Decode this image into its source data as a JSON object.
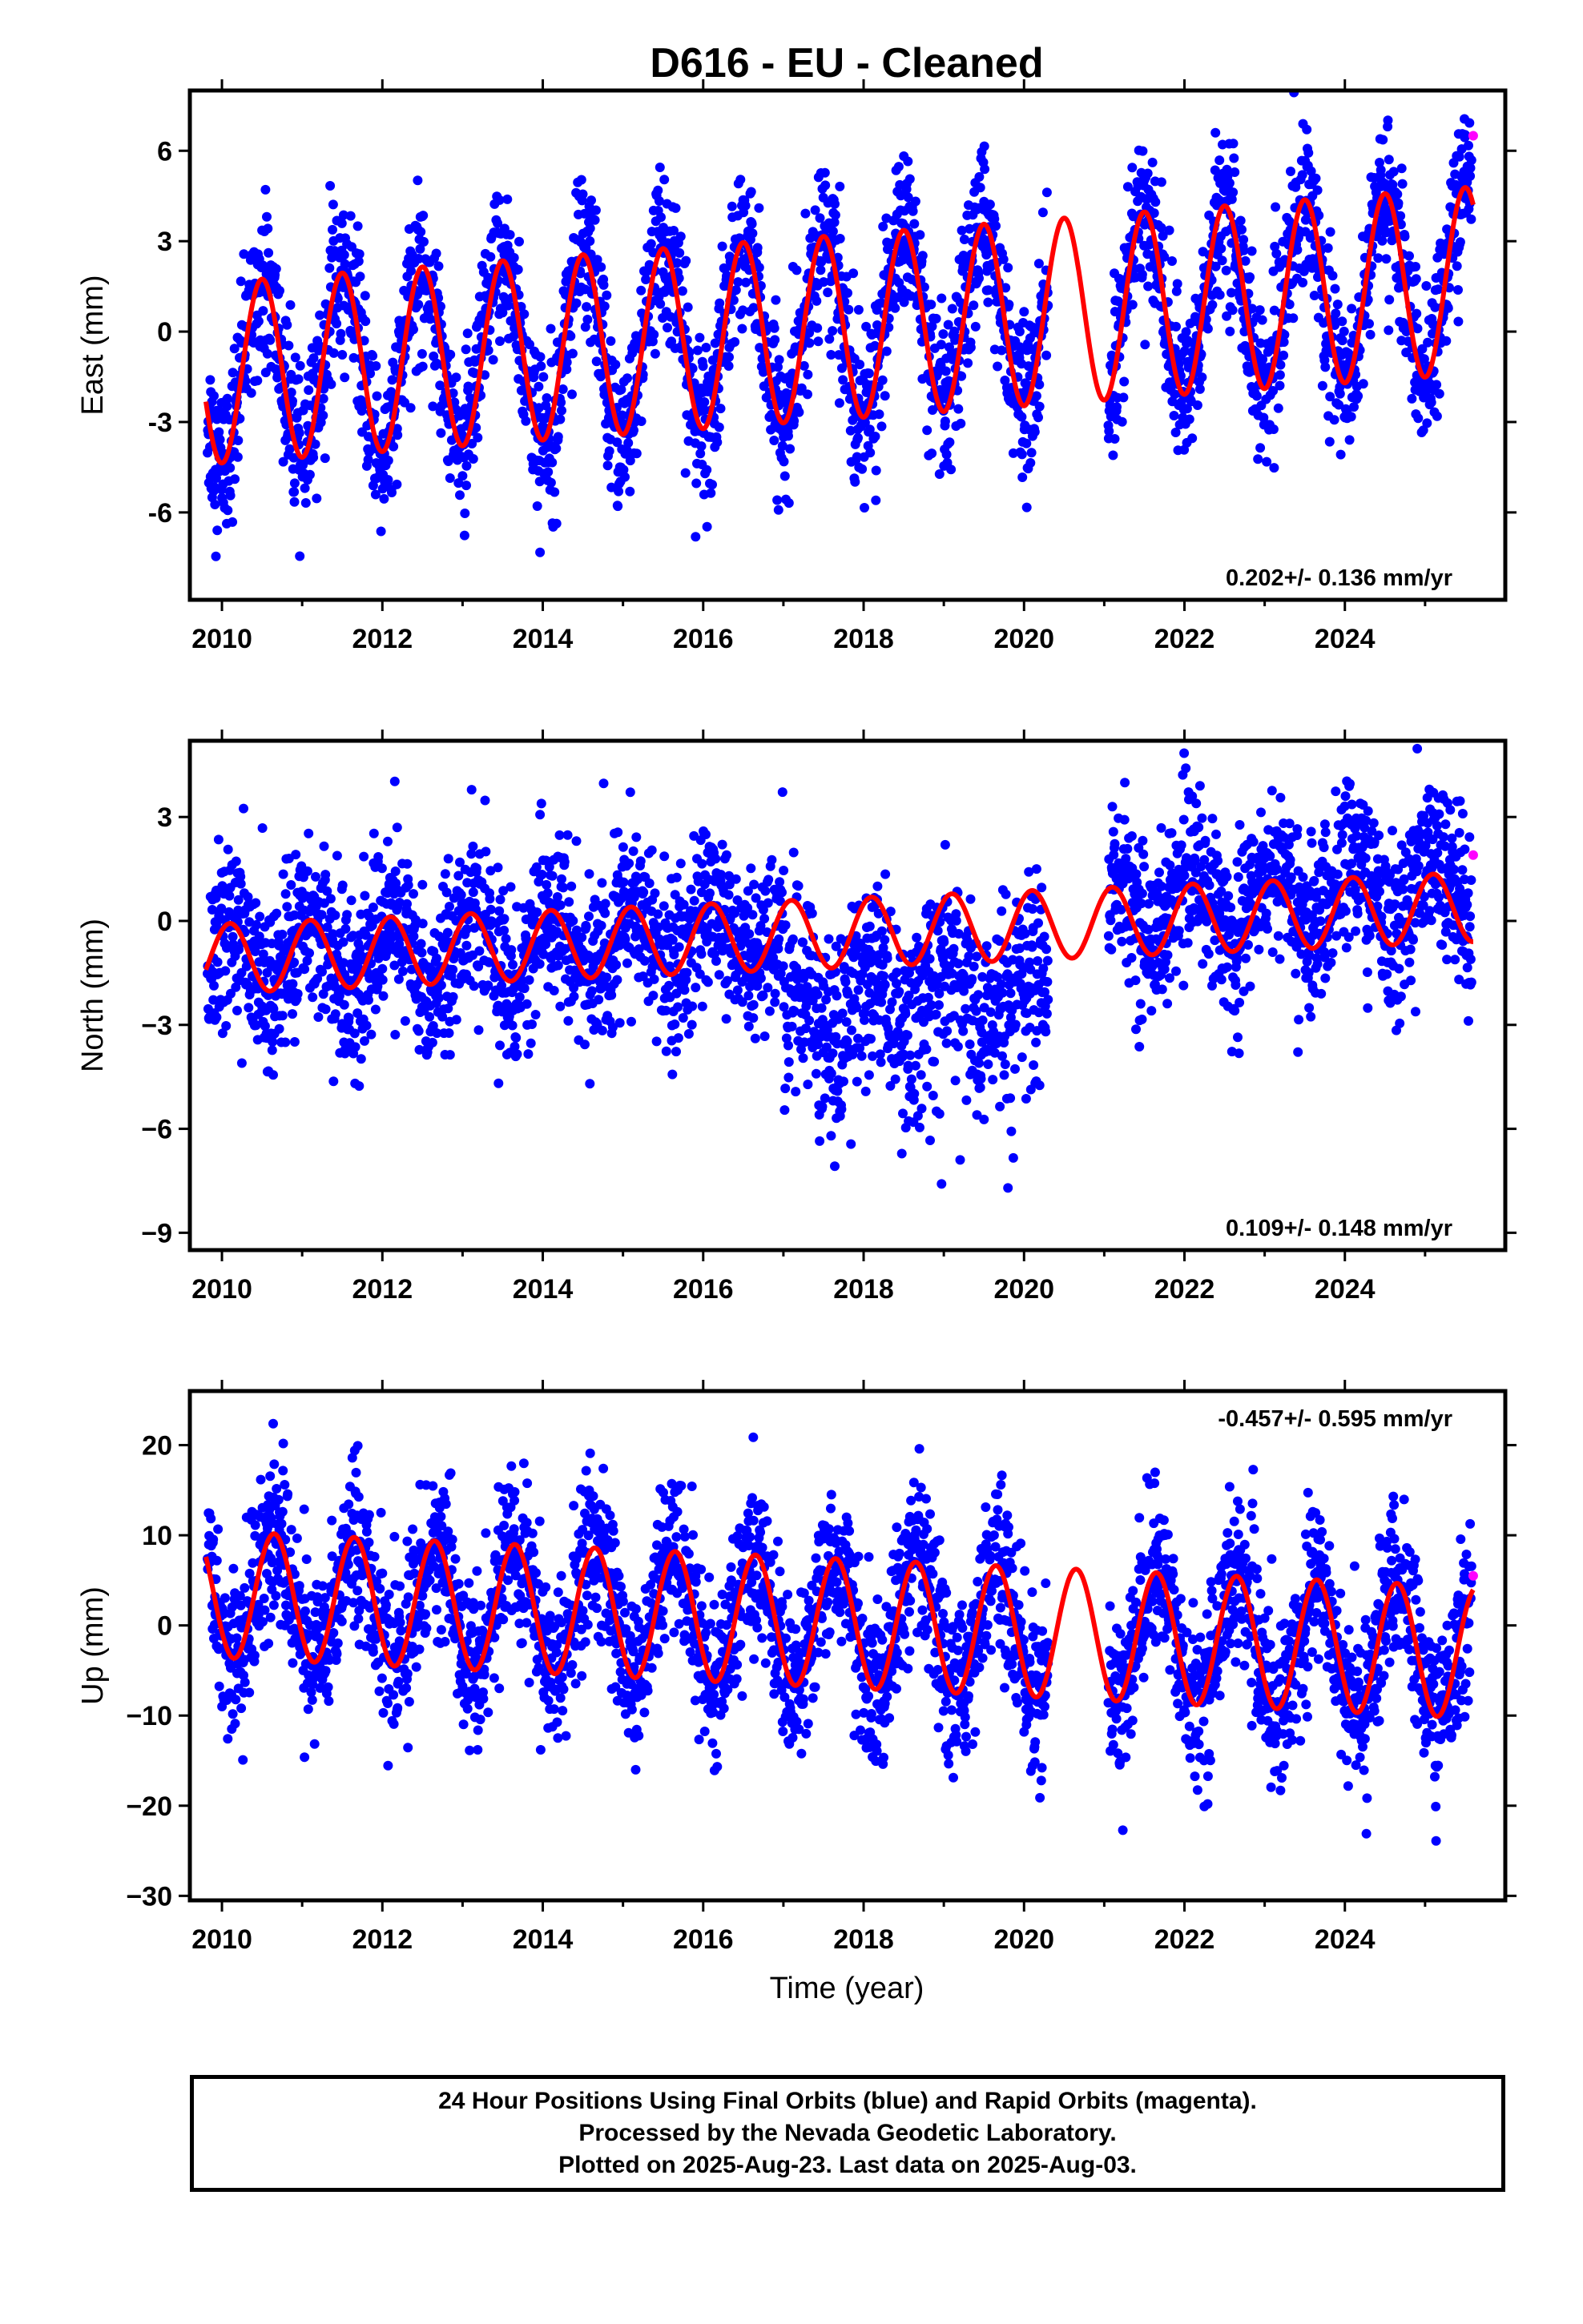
{
  "chart_data": {
    "type": "scatter",
    "title": "D616  - EU - Cleaned",
    "x_label": "Time (year)",
    "x_range": [
      2009.6,
      2026.0
    ],
    "x_ticks": [
      2010,
      2012,
      2014,
      2016,
      2018,
      2020,
      2022,
      2024
    ],
    "series_colors": {
      "final_orbits": "#0000ff",
      "rapid_orbits": "#ff00ff",
      "model": "#ff0000"
    },
    "panels": [
      {
        "name": "east",
        "ylabel": "East (mm)",
        "ylim": [
          -8.9,
          8.0
        ],
        "yticks": [
          -6,
          -3,
          0,
          3,
          6
        ],
        "ytick_labels": [
          "-6",
          "-3",
          "0",
          "3",
          "6"
        ],
        "rate_text": "0.202+/- 0.136 mm/yr",
        "rate_position": "bottom-right",
        "model": {
          "trend_start": -1.4,
          "trend_end": 1.7,
          "annual_amp_start": 3.0,
          "annual_amp_end": 3.1,
          "phase_year": 2010.5
        },
        "noise_sd": 1.3,
        "rapid_point": [
          2025.6,
          6.5
        ]
      },
      {
        "name": "north",
        "ylabel": "North (mm)",
        "ylim": [
          -9.5,
          5.2
        ],
        "yticks": [
          -9,
          -6,
          -3,
          0,
          3
        ],
        "ytick_labels": [
          "−9",
          "−6",
          "−3",
          "0",
          "3"
        ],
        "rate_text": "0.109+/- 0.148 mm/yr",
        "rate_position": "bottom-right",
        "model": {
          "trend_start": -1.1,
          "trend_end": 0.4,
          "annual_amp_start": 1.0,
          "annual_amp_end": 1.0,
          "phase_year": 2010.1
        },
        "noise_sd": 1.2,
        "rapid_point": [
          2025.6,
          1.9
        ]
      },
      {
        "name": "up",
        "ylabel": "Up (mm)",
        "ylim": [
          -30.5,
          26.0
        ],
        "yticks": [
          -30,
          -20,
          -10,
          0,
          10,
          20
        ],
        "ytick_labels": [
          "−30",
          "−20",
          "−10",
          "0",
          "10",
          "20"
        ],
        "rate_text": "-0.457+/- 0.595 mm/yr",
        "rate_position": "top-right",
        "model": {
          "trend_start": 3.5,
          "trend_end": -3.0,
          "annual_amp_start": 7.0,
          "annual_amp_end": 7.3,
          "phase_year": 2010.65
        },
        "noise_sd": 4.5,
        "rapid_point": [
          2025.6,
          5.5
        ]
      }
    ],
    "data_gaps": [
      [
        2020.3,
        2021.05
      ]
    ]
  },
  "footer": {
    "line1": "24 Hour Positions Using Final Orbits (blue) and Rapid Orbits (magenta).",
    "line2": "Processed by the Nevada Geodetic Laboratory.",
    "line3": "Plotted on 2025-Aug-23. Last data on 2025-Aug-03."
  }
}
